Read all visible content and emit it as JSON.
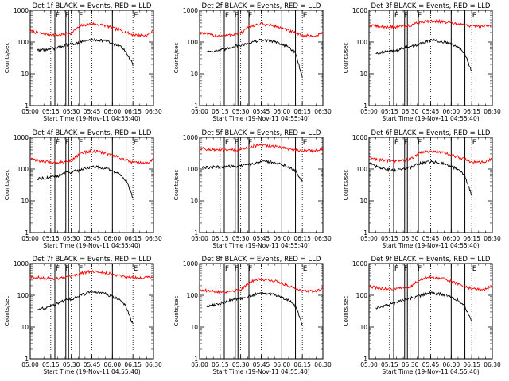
{
  "chart_data": [
    {
      "type": "line",
      "title": "Det 1f BLACK = Events, RED = LLD",
      "xlabel": "Start Time (19-Nov-11 04:55:40)",
      "ylabel": "Counts/sec",
      "xlim": [
        "05:00",
        "06:30"
      ],
      "ylim": [
        1,
        1000
      ],
      "yscale": "log",
      "xticks": [
        "05:00",
        "05:15",
        "05:30",
        "05:45",
        "06:00",
        "06:15",
        "06:30"
      ],
      "yticks": [
        "1",
        "10",
        "100",
        "1000"
      ],
      "markers": {
        "F": [
          "05:20",
          "05:27",
          "05:37"
        ],
        "E": [
          "06:17"
        ],
        "solid_lines": [
          "05:18",
          "05:26",
          "05:28",
          "05:36",
          "06:00",
          "06:10"
        ],
        "dotted_lines": [
          "05:15",
          "05:30",
          "05:45",
          "06:15"
        ]
      },
      "series": [
        {
          "name": "LLD",
          "color": "#ff0000",
          "x": [
            "05:00",
            "05:10",
            "05:20",
            "05:30",
            "05:37",
            "05:45",
            "05:55",
            "06:05",
            "06:15",
            "06:25",
            "06:30"
          ],
          "y": [
            220,
            180,
            165,
            195,
            330,
            380,
            330,
            240,
            170,
            160,
            230
          ]
        },
        {
          "name": "Events",
          "color": "#000000",
          "x": [
            "05:05",
            "05:15",
            "05:20",
            "05:25",
            "05:30",
            "05:37",
            "05:45",
            "05:55",
            "06:05",
            "06:10",
            "06:15"
          ],
          "y": [
            55,
            60,
            65,
            80,
            85,
            100,
            120,
            110,
            75,
            50,
            20
          ]
        }
      ]
    },
    {
      "type": "line",
      "title": "Det 2f BLACK = Events, RED = LLD",
      "xlabel": "Start Time (19-Nov-11 04:55:40)",
      "ylabel": "Counts/sec",
      "xlim": [
        "05:00",
        "06:30"
      ],
      "ylim": [
        1,
        1000
      ],
      "yscale": "log",
      "xticks": [
        "05:00",
        "05:15",
        "05:30",
        "05:45",
        "06:00",
        "06:15",
        "06:30"
      ],
      "yticks": [
        "1",
        "10",
        "100",
        "1000"
      ],
      "markers": {
        "F": [
          "05:20",
          "05:27",
          "05:37"
        ],
        "E": [
          "06:17"
        ],
        "solid_lines": [
          "05:18",
          "05:26",
          "05:28",
          "05:36",
          "06:00",
          "06:10"
        ],
        "dotted_lines": [
          "05:15",
          "05:30",
          "05:45",
          "06:15"
        ]
      },
      "series": [
        {
          "name": "LLD",
          "color": "#ff0000",
          "x": [
            "05:00",
            "05:10",
            "05:20",
            "05:30",
            "05:37",
            "05:45",
            "05:55",
            "06:05",
            "06:15",
            "06:25",
            "06:30"
          ],
          "y": [
            200,
            160,
            160,
            190,
            320,
            370,
            320,
            230,
            160,
            155,
            210
          ]
        },
        {
          "name": "Events",
          "color": "#000000",
          "x": [
            "05:05",
            "05:15",
            "05:20",
            "05:25",
            "05:30",
            "05:37",
            "05:45",
            "05:55",
            "06:05",
            "06:10",
            "06:15"
          ],
          "y": [
            50,
            55,
            60,
            75,
            80,
            95,
            115,
            105,
            70,
            45,
            8
          ]
        }
      ]
    },
    {
      "type": "line",
      "title": "Det 3f BLACK = Events, RED = LLD",
      "xlabel": "Start Time (19-Nov-11 04:55:40)",
      "ylabel": "Counts/sec",
      "xlim": [
        "05:00",
        "06:30"
      ],
      "ylim": [
        1,
        1000
      ],
      "yscale": "log",
      "xticks": [
        "05:00",
        "05:15",
        "05:30",
        "05:45",
        "06:00",
        "06:15",
        "06:30"
      ],
      "yticks": [
        "1",
        "10",
        "100",
        "1000"
      ],
      "markers": {
        "F": [
          "05:20",
          "05:27",
          "05:37"
        ],
        "E": [
          "06:17"
        ],
        "solid_lines": [
          "05:18",
          "05:26",
          "05:28",
          "05:36",
          "06:00",
          "06:10"
        ],
        "dotted_lines": [
          "05:15",
          "05:30",
          "05:45",
          "06:15"
        ]
      },
      "series": [
        {
          "name": "LLD",
          "color": "#ff0000",
          "x": [
            "05:00",
            "05:10",
            "05:20",
            "05:30",
            "05:37",
            "05:45",
            "05:55",
            "06:05",
            "06:15",
            "06:25",
            "06:30"
          ],
          "y": [
            330,
            300,
            300,
            330,
            420,
            470,
            430,
            360,
            320,
            320,
            350
          ]
        },
        {
          "name": "Events",
          "color": "#000000",
          "x": [
            "05:05",
            "05:15",
            "05:20",
            "05:25",
            "05:30",
            "05:37",
            "05:45",
            "05:55",
            "06:05",
            "06:10",
            "06:15"
          ],
          "y": [
            45,
            50,
            55,
            65,
            70,
            85,
            115,
            100,
            70,
            45,
            12
          ]
        }
      ]
    },
    {
      "type": "line",
      "title": "Det 4f BLACK = Events, RED = LLD",
      "xlabel": "Start Time (19-Nov-11 04:55:40)",
      "ylabel": "Counts/sec",
      "xlim": [
        "05:00",
        "06:30"
      ],
      "ylim": [
        1,
        1000
      ],
      "yscale": "log",
      "xticks": [
        "05:00",
        "05:15",
        "05:30",
        "05:45",
        "06:00",
        "06:15",
        "06:30"
      ],
      "yticks": [
        "1",
        "10",
        "100",
        "1000"
      ],
      "markers": {
        "F": [
          "05:20",
          "05:27",
          "05:37"
        ],
        "E": [
          "06:17"
        ],
        "solid_lines": [
          "05:18",
          "05:26",
          "05:28",
          "05:36",
          "06:00",
          "06:10"
        ],
        "dotted_lines": [
          "05:15",
          "05:30",
          "05:45",
          "06:15"
        ]
      },
      "series": [
        {
          "name": "LLD",
          "color": "#ff0000",
          "x": [
            "05:00",
            "05:10",
            "05:20",
            "05:30",
            "05:37",
            "05:45",
            "05:55",
            "06:05",
            "06:15",
            "06:25",
            "06:30"
          ],
          "y": [
            210,
            170,
            160,
            190,
            320,
            370,
            320,
            230,
            160,
            155,
            200
          ]
        },
        {
          "name": "Events",
          "color": "#000000",
          "x": [
            "05:05",
            "05:15",
            "05:20",
            "05:25",
            "05:30",
            "05:37",
            "05:45",
            "05:55",
            "06:05",
            "06:10",
            "06:15"
          ],
          "y": [
            50,
            55,
            60,
            75,
            80,
            95,
            120,
            105,
            70,
            45,
            12
          ]
        }
      ]
    },
    {
      "type": "line",
      "title": "Det 5f BLACK = Events, RED = LLD",
      "xlabel": "Start Time (19-Nov-11 04:55:40)",
      "ylabel": "Counts/sec",
      "xlim": [
        "05:00",
        "06:30"
      ],
      "ylim": [
        1,
        1000
      ],
      "yscale": "log",
      "xticks": [
        "05:00",
        "05:15",
        "05:30",
        "05:45",
        "06:00",
        "06:15",
        "06:30"
      ],
      "yticks": [
        "1",
        "10",
        "100",
        "1000"
      ],
      "markers": {
        "F": [
          "05:20",
          "05:27",
          "05:37"
        ],
        "E": [
          "06:17"
        ],
        "solid_lines": [
          "05:18",
          "05:26",
          "05:28",
          "05:36",
          "06:00",
          "06:10"
        ],
        "dotted_lines": [
          "05:15",
          "05:30",
          "05:45",
          "06:15"
        ]
      },
      "series": [
        {
          "name": "LLD",
          "color": "#ff0000",
          "x": [
            "05:00",
            "05:10",
            "05:20",
            "05:30",
            "05:37",
            "05:45",
            "05:55",
            "06:05",
            "06:15",
            "06:25",
            "06:30"
          ],
          "y": [
            450,
            400,
            390,
            410,
            500,
            560,
            520,
            430,
            380,
            380,
            420
          ]
        },
        {
          "name": "Events",
          "color": "#000000",
          "x": [
            "05:02",
            "05:10",
            "05:20",
            "05:30",
            "05:37",
            "05:45",
            "05:55",
            "06:05",
            "06:10",
            "06:15"
          ],
          "y": [
            110,
            115,
            120,
            125,
            140,
            180,
            160,
            120,
            90,
            40
          ]
        }
      ]
    },
    {
      "type": "line",
      "title": "Det 6f BLACK = Events, RED = LLD",
      "xlabel": "Start Time (19-Nov-11 04:55:40)",
      "ylabel": "Counts/sec",
      "xlim": [
        "05:00",
        "06:30"
      ],
      "ylim": [
        1,
        1000
      ],
      "yscale": "log",
      "xticks": [
        "05:00",
        "05:15",
        "05:30",
        "05:45",
        "06:00",
        "06:15",
        "06:30"
      ],
      "yticks": [
        "1",
        "10",
        "100",
        "1000"
      ],
      "markers": {
        "F": [
          "05:20",
          "05:27",
          "05:37"
        ],
        "E": [
          "06:17"
        ],
        "solid_lines": [
          "05:18",
          "05:26",
          "05:28",
          "05:36",
          "06:00",
          "06:10"
        ],
        "dotted_lines": [
          "05:15",
          "05:30",
          "05:45",
          "06:15"
        ]
      },
      "series": [
        {
          "name": "LLD",
          "color": "#ff0000",
          "x": [
            "05:00",
            "05:10",
            "05:20",
            "05:30",
            "05:37",
            "05:45",
            "05:55",
            "06:05",
            "06:15",
            "06:25",
            "06:30"
          ],
          "y": [
            230,
            190,
            180,
            200,
            320,
            370,
            320,
            240,
            170,
            165,
            210
          ]
        },
        {
          "name": "Events",
          "color": "#000000",
          "x": [
            "05:00",
            "05:10",
            "05:20",
            "05:30",
            "05:37",
            "05:45",
            "05:55",
            "06:05",
            "06:10",
            "06:15"
          ],
          "y": [
            150,
            100,
            90,
            110,
            150,
            170,
            150,
            100,
            60,
            15
          ]
        }
      ]
    },
    {
      "type": "line",
      "title": "Det 7f BLACK = Events, RED = LLD",
      "xlabel": "Start Time (19-Nov-11 04:55:40)",
      "ylabel": "Counts/sec",
      "xlim": [
        "05:00",
        "06:30"
      ],
      "ylim": [
        1,
        1000
      ],
      "yscale": "log",
      "xticks": [
        "05:00",
        "05:15",
        "05:30",
        "05:45",
        "06:00",
        "06:15",
        "06:30"
      ],
      "yticks": [
        "1",
        "10",
        "100",
        "1000"
      ],
      "markers": {
        "F": [
          "05:20",
          "05:27",
          "05:37"
        ],
        "E": [
          "06:17"
        ],
        "solid_lines": [
          "05:18",
          "05:26",
          "05:28",
          "05:36",
          "06:00",
          "06:10"
        ],
        "dotted_lines": [
          "05:15",
          "05:30",
          "05:45",
          "06:15"
        ]
      },
      "series": [
        {
          "name": "LLD",
          "color": "#ff0000",
          "x": [
            "05:00",
            "05:10",
            "05:20",
            "05:30",
            "05:37",
            "05:45",
            "05:55",
            "06:05",
            "06:15",
            "06:25",
            "06:30"
          ],
          "y": [
            390,
            340,
            340,
            370,
            500,
            560,
            500,
            420,
            360,
            360,
            400
          ]
        },
        {
          "name": "Events",
          "color": "#000000",
          "x": [
            "05:05",
            "05:15",
            "05:20",
            "05:25",
            "05:30",
            "05:37",
            "05:45",
            "05:55",
            "06:05",
            "06:10",
            "06:15"
          ],
          "y": [
            35,
            45,
            55,
            70,
            75,
            100,
            130,
            110,
            75,
            45,
            12
          ]
        }
      ]
    },
    {
      "type": "line",
      "title": "Det 8f BLACK = Events, RED = LLD",
      "xlabel": "Start Time (19-Nov-11 04:55:40)",
      "ylabel": "Counts/sec",
      "xlim": [
        "05:00",
        "06:30"
      ],
      "ylim": [
        1,
        1000
      ],
      "yscale": "log",
      "xticks": [
        "05:00",
        "05:15",
        "05:30",
        "05:45",
        "06:00",
        "06:15",
        "06:30"
      ],
      "yticks": [
        "1",
        "10",
        "100",
        "1000"
      ],
      "markers": {
        "F": [
          "05:20",
          "05:27",
          "05:37"
        ],
        "E": [
          "06:17"
        ],
        "solid_lines": [
          "05:18",
          "05:26",
          "05:28",
          "05:36",
          "06:00",
          "06:10"
        ],
        "dotted_lines": [
          "05:15",
          "05:30",
          "05:45",
          "06:15"
        ]
      },
      "series": [
        {
          "name": "LLD",
          "color": "#ff0000",
          "x": [
            "05:00",
            "05:10",
            "05:20",
            "05:30",
            "05:37",
            "05:45",
            "05:55",
            "06:05",
            "06:15",
            "06:25",
            "06:30"
          ],
          "y": [
            150,
            130,
            130,
            150,
            260,
            320,
            280,
            200,
            140,
            130,
            170
          ]
        },
        {
          "name": "Events",
          "color": "#000000",
          "x": [
            "05:05",
            "05:15",
            "05:20",
            "05:25",
            "05:30",
            "05:37",
            "05:45",
            "05:55",
            "06:05",
            "06:10",
            "06:15"
          ],
          "y": [
            45,
            55,
            65,
            75,
            80,
            95,
            120,
            105,
            70,
            45,
            12
          ]
        }
      ]
    },
    {
      "type": "line",
      "title": "Det 9f BLACK = Events, RED = LLD",
      "xlabel": "Start Time (19-Nov-11 04:55:40)",
      "ylabel": "Counts/sec",
      "xlim": [
        "05:00",
        "06:30"
      ],
      "ylim": [
        1,
        1000
      ],
      "yscale": "log",
      "xticks": [
        "05:00",
        "05:15",
        "05:30",
        "05:45",
        "06:00",
        "06:15",
        "06:30"
      ],
      "yticks": [
        "1",
        "10",
        "100",
        "1000"
      ],
      "markers": {
        "F": [
          "05:20",
          "05:27",
          "05:37"
        ],
        "E": [
          "06:17"
        ],
        "solid_lines": [
          "05:18",
          "05:26",
          "05:28",
          "05:36",
          "06:00",
          "06:10"
        ],
        "dotted_lines": [
          "05:15",
          "05:30",
          "05:45",
          "06:15"
        ]
      },
      "series": [
        {
          "name": "LLD",
          "color": "#ff0000",
          "x": [
            "05:00",
            "05:10",
            "05:20",
            "05:30",
            "05:37",
            "05:45",
            "05:55",
            "06:05",
            "06:15",
            "06:25",
            "06:30"
          ],
          "y": [
            190,
            160,
            160,
            180,
            320,
            370,
            320,
            230,
            160,
            155,
            200
          ]
        },
        {
          "name": "Events",
          "color": "#000000",
          "x": [
            "05:05",
            "05:15",
            "05:20",
            "05:25",
            "05:30",
            "05:37",
            "05:45",
            "05:55",
            "06:05",
            "06:10",
            "06:15"
          ],
          "y": [
            40,
            50,
            60,
            70,
            80,
            95,
            120,
            105,
            70,
            45,
            15
          ]
        }
      ]
    }
  ]
}
